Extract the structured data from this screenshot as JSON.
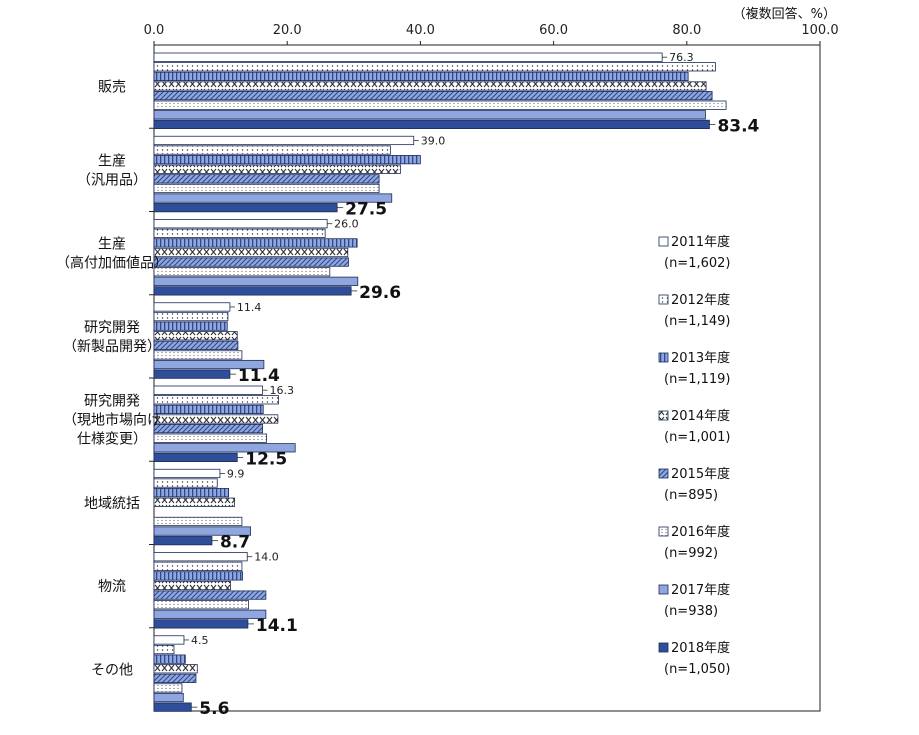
{
  "chart_data": {
    "type": "bar",
    "orientation": "horizontal",
    "unit_label": "（複数回答、%）",
    "xlim": [
      0,
      100
    ],
    "xticks": [
      "0.0",
      "20.0",
      "40.0",
      "60.0",
      "80.0",
      "100.0"
    ],
    "categories": [
      [
        "販売"
      ],
      [
        "生産",
        "（汎用品）"
      ],
      [
        "生産",
        "（高付加価値品）"
      ],
      [
        "研究開発",
        "（新製品開発）"
      ],
      [
        "研究開発",
        "（現地市場向け",
        "仕様変更）"
      ],
      [
        "地域統括"
      ],
      [
        "物流"
      ],
      [
        "その他"
      ]
    ],
    "series": [
      {
        "name": "2011年度",
        "n": "(n=1,602)",
        "color": "#ffffff",
        "pattern": "none",
        "values": [
          76.3,
          39.0,
          26.0,
          11.4,
          16.3,
          9.9,
          14.0,
          4.5
        ]
      },
      {
        "name": "2012年度",
        "n": "(n=1,149)",
        "color": "#ffffff",
        "pattern": "dots",
        "values": [
          84.3,
          35.5,
          25.7,
          11.1,
          18.7,
          9.5,
          13.2,
          3.0
        ]
      },
      {
        "name": "2013年度",
        "n": "(n=1,119)",
        "color": "#8fa6de",
        "pattern": "vlines",
        "values": [
          80.2,
          40.0,
          30.5,
          11.0,
          16.4,
          11.2,
          13.3,
          4.7
        ]
      },
      {
        "name": "2014年度",
        "n": "(n=1,001)",
        "color": "#ffffff",
        "pattern": "crosses",
        "values": [
          82.9,
          37.0,
          29.1,
          12.5,
          18.6,
          12.1,
          11.5,
          6.5
        ]
      },
      {
        "name": "2015年度",
        "n": "(n=895)",
        "color": "#8fa6de",
        "pattern": "diag",
        "values": [
          83.8,
          33.8,
          29.2,
          12.6,
          16.3,
          null,
          16.8,
          6.3
        ]
      },
      {
        "name": "2016年度",
        "n": "(n=992)",
        "color": "#ffffff",
        "pattern": "fdots",
        "values": [
          85.9,
          33.8,
          26.4,
          13.2,
          16.9,
          13.2,
          14.2,
          4.2
        ]
      },
      {
        "name": "2017年度",
        "n": "(n=938)",
        "color": "#8fa6de",
        "pattern": "none",
        "values": [
          82.8,
          35.7,
          30.6,
          16.5,
          21.2,
          14.5,
          16.8,
          4.4
        ]
      },
      {
        "name": "2018年度",
        "n": "(n=1,050)",
        "color": "#2e4e9a",
        "pattern": "none",
        "values": [
          83.4,
          27.5,
          29.6,
          11.4,
          12.5,
          8.7,
          14.1,
          5.6
        ]
      }
    ],
    "first_labels": [
      "76.3",
      "39.0",
      "26.0",
      "11.4",
      "16.3",
      "9.9",
      "14.0",
      "4.5"
    ],
    "last_labels": [
      "83.4",
      "27.5",
      "29.6",
      "11.4",
      "12.5",
      "8.7",
      "14.1",
      "5.6"
    ]
  }
}
